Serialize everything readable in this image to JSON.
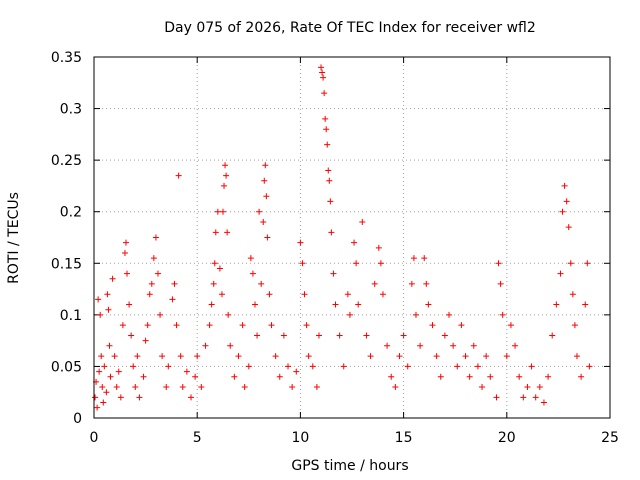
{
  "chart_data": {
    "type": "scatter",
    "title": "Day 075 of 2026, Rate Of TEC Index for receiver wfl2",
    "xlabel": "GPS time / hours",
    "ylabel": "ROTI / TECUs",
    "xlim": [
      0,
      25
    ],
    "ylim": [
      0,
      0.35
    ],
    "xticks": [
      0,
      5,
      10,
      15,
      20,
      25
    ],
    "xtick_labels": [
      "0",
      "5",
      "10",
      "15",
      "20",
      "25"
    ],
    "yticks": [
      0,
      0.05,
      0.1,
      0.15,
      0.2,
      0.25,
      0.3,
      0.35
    ],
    "ytick_labels": [
      "0",
      "0.05",
      "0.1",
      "0.15",
      "0.2",
      "0.25",
      "0.3",
      "0.35"
    ],
    "grid": true,
    "marker": "+",
    "color": "#ff0000",
    "series": [
      {
        "name": "ROTI",
        "points": [
          [
            0.05,
            0.02
          ],
          [
            0.1,
            0.035
          ],
          [
            0.15,
            0.01
          ],
          [
            0.2,
            0.115
          ],
          [
            0.25,
            0.045
          ],
          [
            0.3,
            0.1
          ],
          [
            0.35,
            0.06
          ],
          [
            0.4,
            0.03
          ],
          [
            0.45,
            0.015
          ],
          [
            0.5,
            0.05
          ],
          [
            0.6,
            0.025
          ],
          [
            0.65,
            0.12
          ],
          [
            0.7,
            0.105
          ],
          [
            0.75,
            0.07
          ],
          [
            0.8,
            0.04
          ],
          [
            0.9,
            0.135
          ],
          [
            1.0,
            0.06
          ],
          [
            1.1,
            0.03
          ],
          [
            1.2,
            0.045
          ],
          [
            1.3,
            0.02
          ],
          [
            1.4,
            0.09
          ],
          [
            1.5,
            0.16
          ],
          [
            1.55,
            0.17
          ],
          [
            1.6,
            0.14
          ],
          [
            1.7,
            0.11
          ],
          [
            1.8,
            0.08
          ],
          [
            1.9,
            0.05
          ],
          [
            2.0,
            0.03
          ],
          [
            2.1,
            0.06
          ],
          [
            2.2,
            0.02
          ],
          [
            2.4,
            0.04
          ],
          [
            2.5,
            0.075
          ],
          [
            2.6,
            0.09
          ],
          [
            2.7,
            0.12
          ],
          [
            2.8,
            0.13
          ],
          [
            2.9,
            0.155
          ],
          [
            3.0,
            0.175
          ],
          [
            3.1,
            0.14
          ],
          [
            3.2,
            0.1
          ],
          [
            3.3,
            0.06
          ],
          [
            3.5,
            0.03
          ],
          [
            3.6,
            0.05
          ],
          [
            3.8,
            0.115
          ],
          [
            3.9,
            0.13
          ],
          [
            4.0,
            0.09
          ],
          [
            4.1,
            0.235
          ],
          [
            4.2,
            0.06
          ],
          [
            4.3,
            0.03
          ],
          [
            4.5,
            0.045
          ],
          [
            4.7,
            0.02
          ],
          [
            4.9,
            0.04
          ],
          [
            5.0,
            0.06
          ],
          [
            5.2,
            0.03
          ],
          [
            5.4,
            0.07
          ],
          [
            5.6,
            0.09
          ],
          [
            5.7,
            0.11
          ],
          [
            5.8,
            0.13
          ],
          [
            5.85,
            0.15
          ],
          [
            5.9,
            0.18
          ],
          [
            6.0,
            0.2
          ],
          [
            6.1,
            0.145
          ],
          [
            6.2,
            0.12
          ],
          [
            6.25,
            0.2
          ],
          [
            6.3,
            0.225
          ],
          [
            6.35,
            0.245
          ],
          [
            6.4,
            0.235
          ],
          [
            6.45,
            0.18
          ],
          [
            6.5,
            0.1
          ],
          [
            6.6,
            0.07
          ],
          [
            6.8,
            0.04
          ],
          [
            7.0,
            0.06
          ],
          [
            7.2,
            0.09
          ],
          [
            7.3,
            0.03
          ],
          [
            7.5,
            0.05
          ],
          [
            7.6,
            0.155
          ],
          [
            7.7,
            0.14
          ],
          [
            7.8,
            0.11
          ],
          [
            7.9,
            0.08
          ],
          [
            8.0,
            0.2
          ],
          [
            8.1,
            0.13
          ],
          [
            8.2,
            0.19
          ],
          [
            8.25,
            0.23
          ],
          [
            8.3,
            0.245
          ],
          [
            8.35,
            0.215
          ],
          [
            8.4,
            0.175
          ],
          [
            8.5,
            0.12
          ],
          [
            8.6,
            0.09
          ],
          [
            8.8,
            0.06
          ],
          [
            9.0,
            0.04
          ],
          [
            9.2,
            0.08
          ],
          [
            9.4,
            0.05
          ],
          [
            9.6,
            0.03
          ],
          [
            9.8,
            0.045
          ],
          [
            10.0,
            0.17
          ],
          [
            10.1,
            0.15
          ],
          [
            10.2,
            0.12
          ],
          [
            10.3,
            0.09
          ],
          [
            10.4,
            0.06
          ],
          [
            10.6,
            0.05
          ],
          [
            10.8,
            0.03
          ],
          [
            10.9,
            0.08
          ],
          [
            11.0,
            0.34
          ],
          [
            11.05,
            0.335
          ],
          [
            11.1,
            0.33
          ],
          [
            11.15,
            0.315
          ],
          [
            11.2,
            0.29
          ],
          [
            11.25,
            0.28
          ],
          [
            11.3,
            0.265
          ],
          [
            11.35,
            0.24
          ],
          [
            11.4,
            0.23
          ],
          [
            11.45,
            0.21
          ],
          [
            11.5,
            0.18
          ],
          [
            11.6,
            0.14
          ],
          [
            11.7,
            0.11
          ],
          [
            11.9,
            0.08
          ],
          [
            12.1,
            0.05
          ],
          [
            12.3,
            0.12
          ],
          [
            12.4,
            0.1
          ],
          [
            12.6,
            0.17
          ],
          [
            12.7,
            0.15
          ],
          [
            12.8,
            0.11
          ],
          [
            13.0,
            0.19
          ],
          [
            13.2,
            0.08
          ],
          [
            13.4,
            0.06
          ],
          [
            13.6,
            0.13
          ],
          [
            13.8,
            0.165
          ],
          [
            13.9,
            0.15
          ],
          [
            14.0,
            0.12
          ],
          [
            14.2,
            0.07
          ],
          [
            14.4,
            0.04
          ],
          [
            14.6,
            0.03
          ],
          [
            14.8,
            0.06
          ],
          [
            15.0,
            0.08
          ],
          [
            15.2,
            0.05
          ],
          [
            15.4,
            0.13
          ],
          [
            15.5,
            0.155
          ],
          [
            15.6,
            0.1
          ],
          [
            15.8,
            0.07
          ],
          [
            16.0,
            0.155
          ],
          [
            16.1,
            0.13
          ],
          [
            16.2,
            0.11
          ],
          [
            16.4,
            0.09
          ],
          [
            16.6,
            0.06
          ],
          [
            16.8,
            0.04
          ],
          [
            17.0,
            0.08
          ],
          [
            17.2,
            0.1
          ],
          [
            17.4,
            0.07
          ],
          [
            17.6,
            0.05
          ],
          [
            17.8,
            0.09
          ],
          [
            18.0,
            0.06
          ],
          [
            18.2,
            0.04
          ],
          [
            18.4,
            0.07
          ],
          [
            18.6,
            0.05
          ],
          [
            18.8,
            0.03
          ],
          [
            19.0,
            0.06
          ],
          [
            19.2,
            0.04
          ],
          [
            19.5,
            0.02
          ],
          [
            19.6,
            0.15
          ],
          [
            19.7,
            0.13
          ],
          [
            19.8,
            0.1
          ],
          [
            20.0,
            0.06
          ],
          [
            20.2,
            0.09
          ],
          [
            20.4,
            0.07
          ],
          [
            20.6,
            0.04
          ],
          [
            20.8,
            0.02
          ],
          [
            21.0,
            0.03
          ],
          [
            21.2,
            0.05
          ],
          [
            21.4,
            0.02
          ],
          [
            21.6,
            0.03
          ],
          [
            21.8,
            0.015
          ],
          [
            22.0,
            0.04
          ],
          [
            22.2,
            0.08
          ],
          [
            22.4,
            0.11
          ],
          [
            22.6,
            0.14
          ],
          [
            22.7,
            0.2
          ],
          [
            22.8,
            0.225
          ],
          [
            22.9,
            0.21
          ],
          [
            23.0,
            0.185
          ],
          [
            23.1,
            0.15
          ],
          [
            23.2,
            0.12
          ],
          [
            23.3,
            0.09
          ],
          [
            23.4,
            0.06
          ],
          [
            23.6,
            0.04
          ],
          [
            23.8,
            0.11
          ],
          [
            23.9,
            0.15
          ],
          [
            24.0,
            0.05
          ]
        ]
      }
    ]
  }
}
